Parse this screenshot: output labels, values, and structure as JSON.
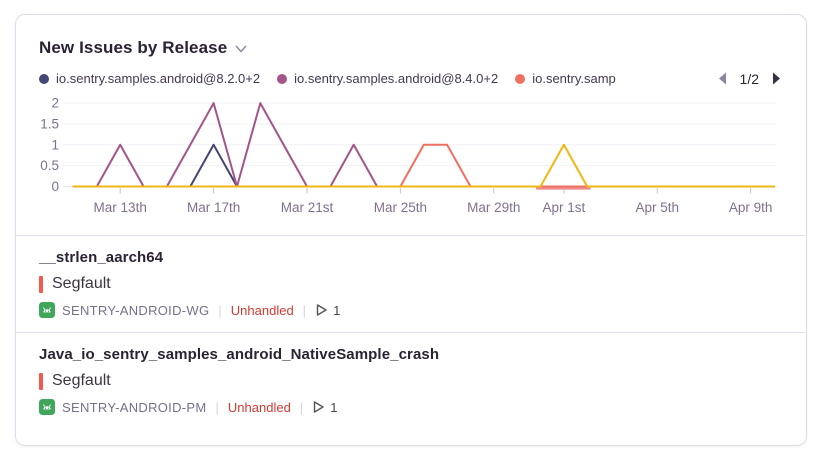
{
  "widget": {
    "title": "New Issues by Release",
    "pagination": {
      "indicator": "1/2"
    }
  },
  "legend": {
    "items": [
      {
        "label": "io.sentry.samples.android@8.2.0+2",
        "color": "#444674"
      },
      {
        "label": "io.sentry.samples.android@8.4.0+2",
        "color": "#a35488"
      },
      {
        "label": "io.sentry.samp",
        "color": "#ef7061"
      }
    ]
  },
  "chart_data": {
    "type": "line",
    "x": [
      "Mar 11",
      "Mar 12",
      "Mar 13",
      "Mar 14",
      "Mar 15",
      "Mar 16",
      "Mar 17",
      "Mar 18",
      "Mar 19",
      "Mar 20",
      "Mar 21",
      "Mar 22",
      "Mar 23",
      "Mar 24",
      "Mar 25",
      "Mar 26",
      "Mar 27",
      "Mar 28",
      "Mar 29",
      "Mar 30",
      "Mar 31",
      "Apr 1",
      "Apr 2",
      "Apr 3",
      "Apr 4",
      "Apr 5",
      "Apr 6",
      "Apr 7",
      "Apr 8",
      "Apr 9",
      "Apr 10"
    ],
    "x_tick_labels": [
      "Mar 13th",
      "Mar 17th",
      "Mar 21st",
      "Mar 25th",
      "Mar 29th",
      "Apr 1st",
      "Apr 5th",
      "Apr 9th"
    ],
    "x_tick_day_index": [
      2,
      6,
      10,
      14,
      18,
      21,
      25,
      29
    ],
    "ylim": [
      0,
      2
    ],
    "yticks": [
      0,
      0.5,
      1,
      1.5,
      2
    ],
    "ytick_labels": [
      "0",
      "0.5",
      "1",
      "1.5",
      "2"
    ],
    "grid": true,
    "legend_position": "top",
    "series": [
      {
        "name": "io.sentry.samples.android@8.2.0+2",
        "color": "#444674",
        "values": [
          0,
          0,
          0,
          0,
          0,
          0,
          1,
          0,
          0,
          0,
          0,
          0,
          0,
          0,
          0,
          0,
          0,
          0,
          0,
          0,
          0,
          0,
          0,
          0,
          0,
          0,
          0,
          0,
          0,
          0,
          0
        ]
      },
      {
        "name": "io.sentry.samples.android@8.4.0+2",
        "color": "#a35488",
        "values": [
          0,
          0,
          1,
          0,
          0,
          1,
          2,
          0,
          2,
          1,
          0,
          0,
          1,
          0,
          0,
          0,
          0,
          0,
          0,
          0,
          0,
          0,
          0,
          0,
          0,
          0,
          0,
          0,
          0,
          0,
          0
        ]
      },
      {
        "name": "io.sentry.samp",
        "color": "#ef7061",
        "values": [
          0,
          0,
          0,
          0,
          0,
          0,
          0,
          0,
          0,
          0,
          0,
          0,
          0,
          0,
          0,
          1,
          1,
          0,
          0,
          0,
          0,
          0,
          0,
          0,
          0,
          0,
          0,
          0,
          0,
          0,
          0
        ]
      },
      {
        "name": "",
        "color": "#f2b712",
        "values": [
          0,
          0,
          0,
          0,
          0,
          0,
          0,
          0,
          0,
          0,
          0,
          0,
          0,
          0,
          0,
          0,
          0,
          0,
          0,
          0,
          0,
          1,
          0,
          0,
          0,
          0,
          0,
          0,
          0,
          0,
          0
        ]
      }
    ],
    "overlay_segment": {
      "color": "#f08989",
      "from_day": 19.85,
      "to_day": 22.1,
      "value": 0
    }
  },
  "issues": [
    {
      "title": "__strlen_aarch64",
      "level": "Segfault",
      "project_short_id": "SENTRY-ANDROID-WG",
      "unhandled_label": "Unhandled",
      "replay_count": "1"
    },
    {
      "title": "Java_io_sentry_samples_android_NativeSample_crash",
      "level": "Segfault",
      "project_short_id": "SENTRY-ANDROID-PM",
      "unhandled_label": "Unhandled",
      "replay_count": "1"
    }
  ]
}
